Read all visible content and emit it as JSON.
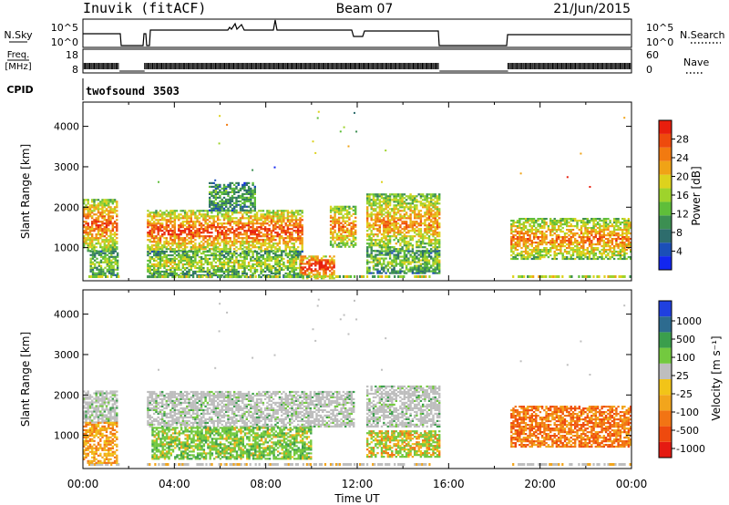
{
  "header": {
    "station": "Inuvik (fitACF)",
    "beam": "Beam 07",
    "date": "21/Jun/2015"
  },
  "chart_data": [
    {
      "type": "line",
      "panel": "noise",
      "left_label": "N.Sky",
      "right_label": "N.Search",
      "left_ticks": [
        "10^5",
        "10^0"
      ],
      "right_ticks": [
        "10^5",
        "10^0"
      ],
      "scale": "log",
      "data_gaps_hours": [
        [
          1.6,
          2.5
        ],
        [
          15.6,
          18.5
        ]
      ]
    },
    {
      "type": "line",
      "panel": "frequency",
      "left_label_lines": [
        "Freq.",
        "[MHz]"
      ],
      "right_label": "Nave",
      "left_ticks": [
        "18",
        "8"
      ],
      "right_ticks": [
        "60",
        "0"
      ]
    },
    {
      "type": "table",
      "panel": "cpid",
      "label": "CPID",
      "entries": [
        {
          "name": "twofsound",
          "id": "3503"
        }
      ]
    },
    {
      "type": "heatmap",
      "panel": "power",
      "xlabel": "",
      "ylabel": "Slant Range [km]",
      "xlim_hours": [
        0,
        24
      ],
      "ylim_km": [
        180,
        4600
      ],
      "y_ticks": [
        "1000",
        "2000",
        "3000",
        "4000"
      ],
      "colorbar": {
        "label": "Power [dB]",
        "tick_labels": [
          "4",
          "8",
          "12",
          "16",
          "20",
          "24",
          "28"
        ],
        "colors": [
          "#1226f0",
          "#1b4fb8",
          "#2e6d6d",
          "#3c8f52",
          "#5fbe3a",
          "#9ed32c",
          "#ddd21d",
          "#f0a316",
          "#f27a10",
          "#ee4a0d",
          "#e81e0d"
        ]
      },
      "echo_blocks": [
        {
          "t0": 0.0,
          "t1": 1.5,
          "r0": 900,
          "r1": 2200,
          "level": 0.8
        },
        {
          "t0": 0.3,
          "t1": 1.5,
          "r0": 300,
          "r1": 900,
          "level": 0.45
        },
        {
          "t0": 2.8,
          "t1": 9.6,
          "r0": 900,
          "r1": 1900,
          "level": 0.85
        },
        {
          "t0": 2.8,
          "t1": 9.6,
          "r0": 250,
          "r1": 900,
          "level": 0.5
        },
        {
          "t0": 5.5,
          "t1": 7.5,
          "r0": 1900,
          "r1": 2600,
          "level": 0.35
        },
        {
          "t0": 9.5,
          "t1": 11.0,
          "r0": 220,
          "r1": 800,
          "level": 0.95
        },
        {
          "t0": 10.8,
          "t1": 11.9,
          "r0": 1000,
          "r1": 2000,
          "level": 0.75
        },
        {
          "t0": 12.4,
          "t1": 15.6,
          "r0": 900,
          "r1": 2300,
          "level": 0.7
        },
        {
          "t0": 12.4,
          "t1": 15.6,
          "r0": 350,
          "r1": 900,
          "level": 0.45
        },
        {
          "t0": 18.7,
          "t1": 24.0,
          "r0": 700,
          "r1": 1700,
          "level": 0.75
        }
      ]
    },
    {
      "type": "heatmap",
      "panel": "velocity",
      "xlabel": "Time UT",
      "ylabel": "Slant Range [km]",
      "xlim_hours": [
        0,
        24
      ],
      "ylim_km": [
        180,
        4600
      ],
      "x_ticks": [
        "00:00",
        "04:00",
        "08:00",
        "12:00",
        "16:00",
        "20:00",
        "00:00"
      ],
      "y_ticks": [
        "1000",
        "2000",
        "3000",
        "4000"
      ],
      "colorbar": {
        "label": "Velocity [m s⁻¹]",
        "tick_labels": [
          "1000",
          "500",
          "100",
          "25",
          "-25",
          "-100",
          "-500",
          "-1000"
        ],
        "colors": [
          "#2040e0",
          "#2d6b8f",
          "#3b9e4c",
          "#73c93f",
          "#bebebe",
          "#f2c418",
          "#f2a51c",
          "#f27414",
          "#ee4a0e",
          "#e51b12"
        ],
        "ground_scatter_color": "#bebebe"
      },
      "echo_blocks": [
        {
          "t0": 0.0,
          "t1": 1.5,
          "r0": 1300,
          "r1": 2100,
          "kind": "ground"
        },
        {
          "t0": 0.0,
          "t1": 1.5,
          "r0": 300,
          "r1": 1300,
          "kind": "away"
        },
        {
          "t0": 2.8,
          "t1": 11.8,
          "r0": 1200,
          "r1": 2100,
          "kind": "ground"
        },
        {
          "t0": 3.0,
          "t1": 10.0,
          "r0": 400,
          "r1": 1200,
          "kind": "toward"
        },
        {
          "t0": 12.4,
          "t1": 15.6,
          "r0": 1200,
          "r1": 2200,
          "kind": "ground"
        },
        {
          "t0": 12.4,
          "t1": 15.6,
          "r0": 450,
          "r1": 1100,
          "kind": "mixed"
        },
        {
          "t0": 18.7,
          "t1": 24.0,
          "r0": 700,
          "r1": 1700,
          "kind": "away_strong"
        }
      ]
    }
  ]
}
